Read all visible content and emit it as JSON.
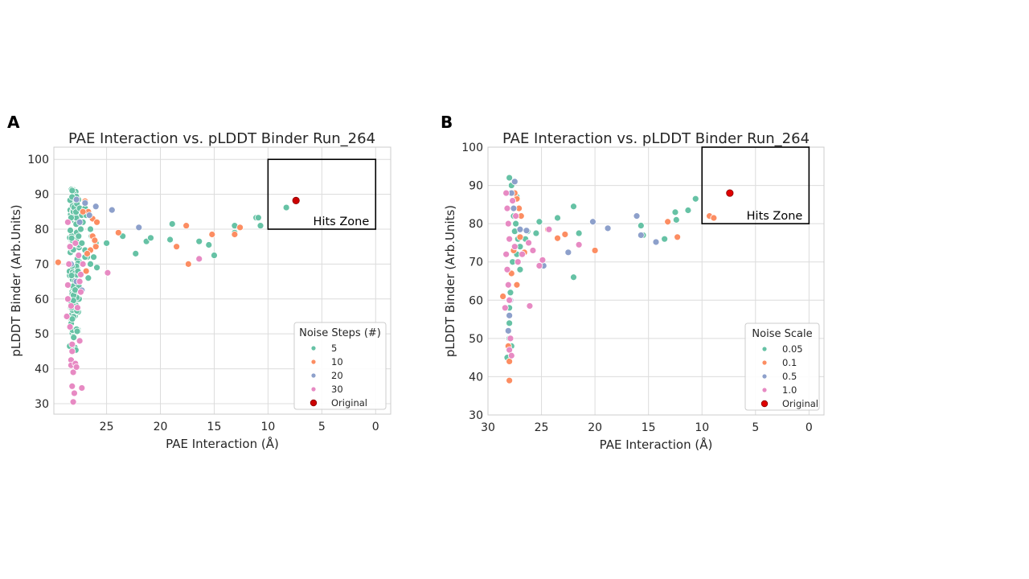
{
  "chart_data": [
    {
      "panel": "A",
      "type": "scatter",
      "title": "PAE Interaction vs. pLDDT Binder Run_264",
      "xlabel": "PAE Interaction (Å)",
      "ylabel": "pLDDT Binder (Arb.Units)",
      "xlim": [
        29.9,
        -1.4
      ],
      "ylim": [
        27,
        103.5
      ],
      "x_inverted": true,
      "xticks": [
        25,
        20,
        15,
        10,
        5,
        0
      ],
      "yticks": [
        30,
        40,
        50,
        60,
        70,
        80,
        90,
        100
      ],
      "grid": true,
      "hits_zone": {
        "label": "Hits Zone",
        "x_range": [
          0,
          10
        ],
        "y_range": [
          80,
          100
        ]
      },
      "legend": {
        "title": "Noise Steps (#)",
        "placement": "lower-right",
        "entries": [
          "5",
          "10",
          "20",
          "30",
          "Original"
        ]
      },
      "series": [
        {
          "name": "5",
          "color": "#66c2a5",
          "cluster": {
            "x_center": 28.0,
            "x_spread": 0.45,
            "y_min": 45,
            "y_max": 91.5,
            "count": 130
          },
          "points": [
            [
              27.5,
              86
            ],
            [
              27.3,
              84
            ],
            [
              27.2,
              82
            ],
            [
              27.4,
              80
            ],
            [
              27.6,
              78
            ],
            [
              27.3,
              76
            ],
            [
              27.0,
              74
            ],
            [
              26.8,
              72
            ],
            [
              26.5,
              70
            ],
            [
              26.2,
              72
            ],
            [
              25.9,
              69
            ],
            [
              26.0,
              76
            ],
            [
              26.5,
              80
            ],
            [
              27.0,
              86
            ],
            [
              26.9,
              84
            ],
            [
              26.7,
              66
            ],
            [
              27.0,
              72
            ],
            [
              26.4,
              78
            ],
            [
              25.0,
              76
            ],
            [
              23.5,
              78
            ],
            [
              22.3,
              73
            ],
            [
              21.3,
              76.5
            ],
            [
              20.9,
              77.5
            ],
            [
              19.1,
              77
            ],
            [
              18.9,
              81.5
            ],
            [
              16.4,
              76.5
            ],
            [
              15.5,
              75.5
            ],
            [
              15.0,
              72.5
            ],
            [
              13.1,
              79
            ],
            [
              13.1,
              81
            ],
            [
              11.1,
              83.3
            ],
            [
              10.9,
              83.3
            ],
            [
              10.7,
              81
            ],
            [
              8.3,
              86.2
            ]
          ]
        },
        {
          "name": "10",
          "color": "#fc8d62",
          "points": [
            [
              29.5,
              70.5
            ],
            [
              27.0,
              88
            ],
            [
              26.7,
              85
            ],
            [
              26.3,
              83
            ],
            [
              25.9,
              82
            ],
            [
              26.3,
              78
            ],
            [
              26.0,
              75
            ],
            [
              26.5,
              74
            ],
            [
              26.1,
              76.8
            ],
            [
              26.9,
              68
            ],
            [
              23.9,
              79
            ],
            [
              18.5,
              75
            ],
            [
              17.6,
              81
            ],
            [
              17.4,
              70
            ],
            [
              15.2,
              78.5
            ],
            [
              13.1,
              78.5
            ],
            [
              12.6,
              80.5
            ],
            [
              27.2,
              85
            ],
            [
              26.8,
              73
            ]
          ]
        },
        {
          "name": "20",
          "color": "#8da0cb",
          "points": [
            [
              27.8,
              88.5
            ],
            [
              27.0,
              87.5
            ],
            [
              26.0,
              86.5
            ],
            [
              24.5,
              85.5
            ],
            [
              22.0,
              80.5
            ],
            [
              27.5,
              82
            ],
            [
              26.6,
              84
            ],
            [
              27.3,
              62.5
            ],
            [
              27.8,
              65
            ],
            [
              28.3,
              70
            ]
          ]
        },
        {
          "name": "30",
          "color": "#e78ac3",
          "points": [
            [
              28.6,
              82
            ],
            [
              28.4,
              75
            ],
            [
              28.5,
              70
            ],
            [
              28.6,
              64
            ],
            [
              28.3,
              58
            ],
            [
              28.4,
              52
            ],
            [
              28.2,
              47
            ],
            [
              28.2,
              45
            ],
            [
              28.3,
              42.5
            ],
            [
              28.3,
              41
            ],
            [
              27.9,
              41.5
            ],
            [
              28.1,
              39
            ],
            [
              27.8,
              40.5
            ],
            [
              27.5,
              48
            ],
            [
              28.2,
              35
            ],
            [
              27.3,
              34.5
            ],
            [
              28.0,
              33
            ],
            [
              28.1,
              30.5
            ],
            [
              27.7,
              57.5
            ],
            [
              27.4,
              62
            ],
            [
              27.4,
              67
            ],
            [
              27.2,
              70
            ],
            [
              27.6,
              72.5
            ],
            [
              27.9,
              76
            ],
            [
              27.5,
              65
            ],
            [
              24.9,
              67.5
            ],
            [
              16.4,
              71.5
            ],
            [
              28.6,
              60
            ],
            [
              28.7,
              55
            ]
          ]
        },
        {
          "name": "Original",
          "color": "#cc0000",
          "points": [
            [
              7.4,
              88.2
            ]
          ]
        }
      ]
    },
    {
      "panel": "B",
      "type": "scatter",
      "title": "PAE Interaction vs. pLDDT Binder Run_264",
      "xlabel": "PAE Interaction (Å)",
      "ylabel": "pLDDT Binder (Arb.Units)",
      "xlim": [
        30,
        -1.4
      ],
      "ylim": [
        30,
        100
      ],
      "x_inverted": true,
      "xticks": [
        30,
        25,
        20,
        15,
        10,
        5,
        0
      ],
      "yticks": [
        30,
        40,
        50,
        60,
        70,
        80,
        90,
        100
      ],
      "grid": true,
      "hits_zone": {
        "label": "Hits Zone",
        "x_range": [
          0,
          10
        ],
        "y_range": [
          80,
          100
        ]
      },
      "legend": {
        "title": "Noise Scale",
        "placement": "lower-right",
        "entries": [
          "0.05",
          "0.1",
          "0.5",
          "1.0",
          "Original"
        ]
      },
      "series": [
        {
          "name": "0.05",
          "color": "#66c2a5",
          "points": [
            [
              28.0,
              92
            ],
            [
              27.8,
              90
            ],
            [
              27.3,
              87
            ],
            [
              27.6,
              82
            ],
            [
              27.4,
              80
            ],
            [
              27.5,
              78
            ],
            [
              27.2,
              76
            ],
            [
              27.0,
              74
            ],
            [
              27.3,
              72
            ],
            [
              27.7,
              70
            ],
            [
              27.0,
              68
            ],
            [
              26.5,
              76
            ],
            [
              26.3,
              78
            ],
            [
              25.5,
              77.5
            ],
            [
              25.2,
              80.5
            ],
            [
              23.5,
              81.5
            ],
            [
              22.0,
              84.5
            ],
            [
              21.5,
              77.5
            ],
            [
              22.0,
              66
            ],
            [
              15.7,
              79.5
            ],
            [
              15.5,
              77
            ],
            [
              13.5,
              76
            ],
            [
              12.5,
              83
            ],
            [
              12.4,
              81
            ],
            [
              11.3,
              83.5
            ],
            [
              10.6,
              86.5
            ],
            [
              28.0,
              58
            ],
            [
              28.0,
              50
            ],
            [
              28.2,
              45
            ],
            [
              27.8,
              48
            ],
            [
              28.0,
              54
            ],
            [
              27.9,
              62
            ]
          ]
        },
        {
          "name": "0.1",
          "color": "#fc8d62",
          "points": [
            [
              28.6,
              61
            ],
            [
              28.0,
              44
            ],
            [
              28.0,
              39
            ],
            [
              28.1,
              48
            ],
            [
              27.3,
              86.5
            ],
            [
              27.1,
              84
            ],
            [
              26.9,
              82
            ],
            [
              27.0,
              76.5
            ],
            [
              26.6,
              72.5
            ],
            [
              27.3,
              64
            ],
            [
              24.4,
              78.5
            ],
            [
              23.5,
              76.2
            ],
            [
              22.8,
              77.2
            ],
            [
              20.0,
              73
            ],
            [
              13.2,
              80.5
            ],
            [
              12.3,
              76.5
            ],
            [
              9.3,
              82
            ],
            [
              8.9,
              81.5
            ],
            [
              27.5,
              88
            ],
            [
              27.6,
              73
            ],
            [
              27.8,
              67
            ]
          ]
        },
        {
          "name": "0.5",
          "color": "#8da0cb",
          "points": [
            [
              27.5,
              91
            ],
            [
              27.8,
              88
            ],
            [
              27.6,
              84
            ],
            [
              27.0,
              78.5
            ],
            [
              26.4,
              78.2
            ],
            [
              24.8,
              69
            ],
            [
              22.5,
              72.5
            ],
            [
              20.2,
              80.5
            ],
            [
              18.8,
              78.8
            ],
            [
              16.1,
              82
            ],
            [
              15.7,
              77
            ],
            [
              14.3,
              75.2
            ],
            [
              28.1,
              52
            ],
            [
              28.0,
              56
            ],
            [
              27.9,
              60
            ]
          ]
        },
        {
          "name": "1.0",
          "color": "#e78ac3",
          "points": [
            [
              28.3,
              88
            ],
            [
              28.2,
              84
            ],
            [
              28.1,
              80
            ],
            [
              28.0,
              76
            ],
            [
              28.3,
              72
            ],
            [
              28.2,
              68
            ],
            [
              28.1,
              64
            ],
            [
              28.0,
              60
            ],
            [
              27.7,
              86
            ],
            [
              27.4,
              82
            ],
            [
              27.5,
              74
            ],
            [
              27.2,
              70
            ],
            [
              26.8,
              72
            ],
            [
              26.2,
              75
            ],
            [
              25.8,
              73
            ],
            [
              25.2,
              69
            ],
            [
              24.9,
              70.5
            ],
            [
              24.3,
              78.5
            ],
            [
              21.5,
              74.5
            ],
            [
              26.1,
              58.5
            ],
            [
              28.0,
              47
            ],
            [
              27.8,
              45.5
            ],
            [
              27.9,
              50
            ],
            [
              28.4,
              58
            ]
          ]
        },
        {
          "name": "Original",
          "color": "#e00000",
          "points": [
            [
              7.4,
              88
            ]
          ]
        }
      ]
    }
  ],
  "panels": {
    "A": {
      "letter": "A"
    },
    "B": {
      "letter": "B"
    }
  }
}
